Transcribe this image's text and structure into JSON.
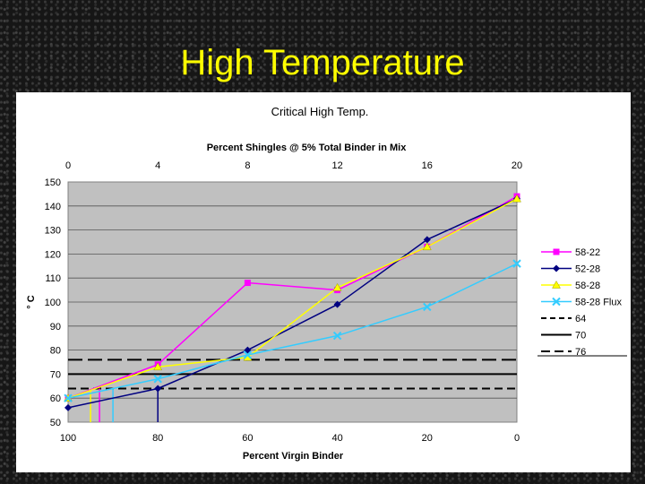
{
  "slide": {
    "title": "High Temperature"
  },
  "chart_data": {
    "type": "line",
    "title": "Critical High Temp.",
    "top_axis_label": "Percent Shingles @ 5% Total Binder in Mix",
    "top_ticks": [
      "0",
      "4",
      "8",
      "12",
      "16",
      "20"
    ],
    "xlabel": "Percent Virgin Binder",
    "ylabel": "° C",
    "x_ticks": [
      100,
      80,
      60,
      40,
      20,
      0
    ],
    "xlim": [
      100,
      0
    ],
    "ylim": [
      50,
      150
    ],
    "y_ticks": [
      50,
      60,
      70,
      80,
      90,
      100,
      110,
      120,
      130,
      140,
      150
    ],
    "grid": "horizontal",
    "legend_position": "right",
    "series": [
      {
        "name": "58-22",
        "color": "#ff00ff",
        "marker": "square",
        "x": [
          100,
          80,
          60,
          40,
          20,
          0
        ],
        "y": [
          60,
          74,
          108,
          105,
          123,
          144
        ]
      },
      {
        "name": "52-28",
        "color": "#000080",
        "marker": "diamond",
        "x": [
          100,
          80,
          60,
          40,
          20,
          0
        ],
        "y": [
          56,
          64,
          80,
          99,
          126,
          143
        ]
      },
      {
        "name": "58-28",
        "color": "#ffff00",
        "marker": "triangle",
        "x": [
          100,
          80,
          60,
          40,
          20,
          0
        ],
        "y": [
          60,
          73,
          77,
          106,
          123,
          143
        ]
      },
      {
        "name": "58-28 Flux",
        "color": "#33ccff",
        "marker": "x",
        "x": [
          100,
          80,
          60,
          40,
          20,
          0
        ],
        "y": [
          60,
          68,
          78,
          86,
          98,
          116
        ]
      }
    ],
    "reference_lines": [
      {
        "name": "64",
        "y": 64,
        "style": "dashed"
      },
      {
        "name": "70",
        "y": 70,
        "style": "solid"
      },
      {
        "name": "76",
        "y": 76,
        "style": "longdash"
      }
    ],
    "drop_lines": [
      {
        "series": "58-22",
        "x": 93,
        "y": 64
      },
      {
        "series": "52-28",
        "x": 80,
        "y": 64
      },
      {
        "series": "58-28",
        "x": 95,
        "y": 64
      },
      {
        "series": "58-28 Flux",
        "x": 90,
        "y": 64
      }
    ]
  }
}
